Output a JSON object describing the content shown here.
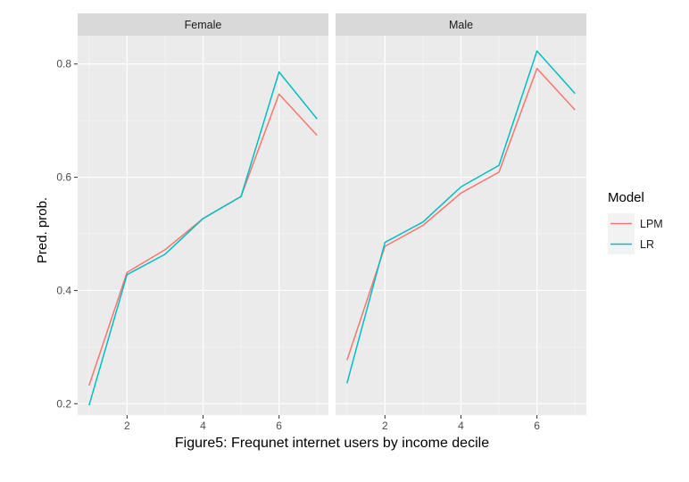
{
  "chart_data": {
    "type": "line",
    "facets": [
      "Female",
      "Male"
    ],
    "ylabel": "Pred. prob.",
    "caption": "Figure5: Frequnet internet users by income decile",
    "x_ticks": [
      2,
      4,
      6
    ],
    "y_ticks": [
      "0.2",
      "0.4",
      "0.6",
      "0.8"
    ],
    "xlim": [
      0.7,
      7.3
    ],
    "ylim": [
      0.18,
      0.85
    ],
    "legend": {
      "title": "Model",
      "placement": "right",
      "entries": [
        "LPM",
        "LR"
      ]
    },
    "colors": {
      "LPM": "#F8766D",
      "LR": "#00BFC4",
      "panel_bg": "#EBEBEB",
      "strip_bg": "#D9D9D9",
      "grid": "#FFFFFF"
    },
    "x": [
      1,
      2,
      3,
      4,
      5,
      6,
      7
    ],
    "series": [
      {
        "facet": "Female",
        "name": "LPM",
        "values": [
          0.232,
          0.432,
          0.472,
          0.527,
          0.566,
          0.747,
          0.674
        ]
      },
      {
        "facet": "Female",
        "name": "LR",
        "values": [
          0.197,
          0.428,
          0.464,
          0.527,
          0.566,
          0.786,
          0.703
        ]
      },
      {
        "facet": "Male",
        "name": "LPM",
        "values": [
          0.277,
          0.478,
          0.515,
          0.572,
          0.609,
          0.792,
          0.719
        ]
      },
      {
        "facet": "Male",
        "name": "LR",
        "values": [
          0.236,
          0.485,
          0.521,
          0.583,
          0.621,
          0.823,
          0.748
        ]
      }
    ]
  }
}
